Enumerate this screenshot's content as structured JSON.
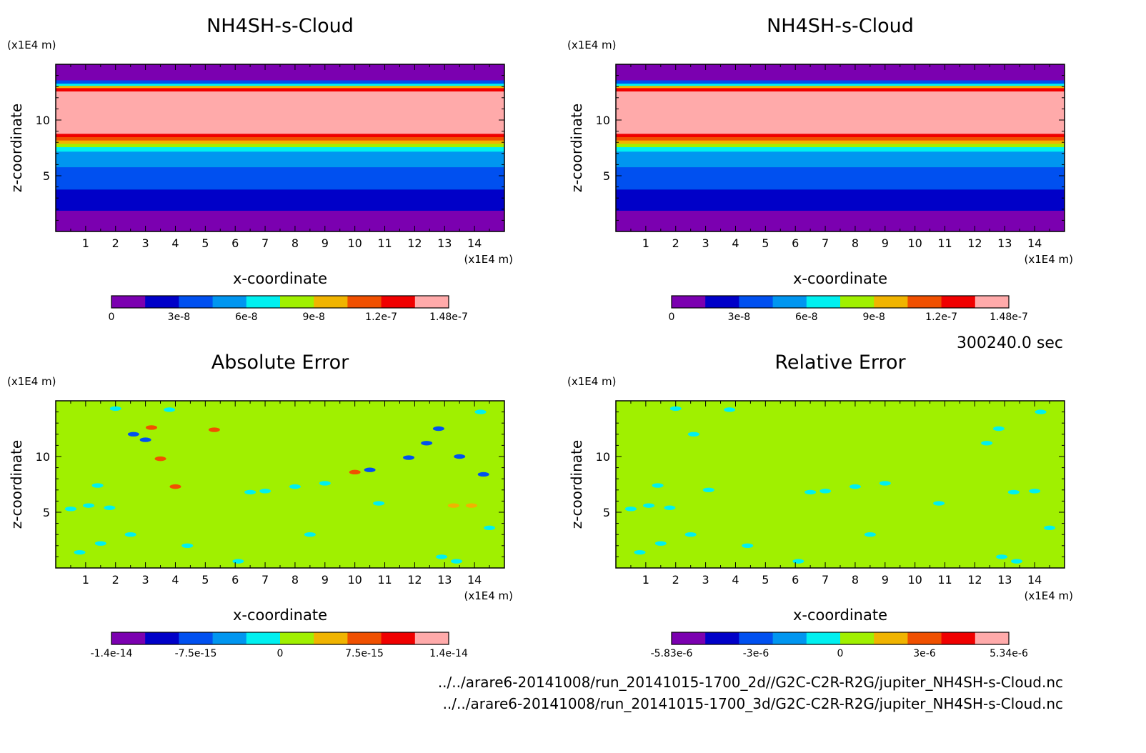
{
  "time_label": "300240.0 sec",
  "files": [
    "../../arare6-20141008/run_20141015-1700_2d//G2C-C2R-R2G/jupiter_NH4SH-s-Cloud.nc",
    "../../arare6-20141008/run_20141015-1700_3d/G2C-C2R-R2G/jupiter_NH4SH-s-Cloud.nc"
  ],
  "palette": [
    "#7b00b0",
    "#0000c8",
    "#0050f0",
    "#0096f0",
    "#00f0f0",
    "#a0f000",
    "#f0b400",
    "#f05000",
    "#f00000",
    "#ffaaaa"
  ],
  "chart_data": [
    {
      "type": "heatmap",
      "title": "NH4SH-s-Cloud",
      "xlabel": "x-coordinate",
      "ylabel": "z-coordinate",
      "x_unit": "(x1E4 m)",
      "y_unit": "(x1E4 m)",
      "xlim": [
        0,
        15
      ],
      "ylim": [
        0,
        15
      ],
      "x_ticks": [
        1,
        2,
        3,
        4,
        5,
        6,
        7,
        8,
        9,
        10,
        11,
        12,
        13,
        14
      ],
      "y_ticks": [
        5,
        10
      ],
      "colorbar_ticks": [
        "0",
        "3e-8",
        "6e-8",
        "9e-8",
        "1.2e-7",
        "1.48e-7"
      ],
      "layers": [
        {
          "level": 0,
          "z_from": 0,
          "z_to": 1.9
        },
        {
          "level": 1,
          "z_from": 1.9,
          "z_to": 3.8
        },
        {
          "level": 2,
          "z_from": 3.8,
          "z_to": 5.8
        },
        {
          "level": 3,
          "z_from": 5.8,
          "z_to": 7.2
        },
        {
          "level": 4,
          "z_from": 7.2,
          "z_to": 7.6
        },
        {
          "level": 5,
          "z_from": 7.6,
          "z_to": 7.9
        },
        {
          "level": 6,
          "z_from": 7.9,
          "z_to": 8.2
        },
        {
          "level": 7,
          "z_from": 8.2,
          "z_to": 8.5
        },
        {
          "level": 8,
          "z_from": 8.5,
          "z_to": 8.8
        },
        {
          "level": 9,
          "z_from": 8.8,
          "z_to": 12.6
        },
        {
          "level": 8,
          "z_from": 12.6,
          "z_to": 12.9
        },
        {
          "level": 6,
          "z_from": 12.9,
          "z_to": 13.1
        },
        {
          "level": 4,
          "z_from": 13.1,
          "z_to": 13.3
        },
        {
          "level": 2,
          "z_from": 13.3,
          "z_to": 13.6
        },
        {
          "level": 0,
          "z_from": 13.6,
          "z_to": 15
        }
      ]
    },
    {
      "type": "heatmap",
      "title": "NH4SH-s-Cloud",
      "xlabel": "x-coordinate",
      "ylabel": "z-coordinate",
      "x_unit": "(x1E4 m)",
      "y_unit": "(x1E4 m)",
      "xlim": [
        0,
        15
      ],
      "ylim": [
        0,
        15
      ],
      "x_ticks": [
        1,
        2,
        3,
        4,
        5,
        6,
        7,
        8,
        9,
        10,
        11,
        12,
        13,
        14
      ],
      "y_ticks": [
        5,
        10
      ],
      "colorbar_ticks": [
        "0",
        "3e-8",
        "6e-8",
        "9e-8",
        "1.2e-7",
        "1.48e-7"
      ],
      "layers": [
        {
          "level": 0,
          "z_from": 0,
          "z_to": 1.9
        },
        {
          "level": 1,
          "z_from": 1.9,
          "z_to": 3.8
        },
        {
          "level": 2,
          "z_from": 3.8,
          "z_to": 5.8
        },
        {
          "level": 3,
          "z_from": 5.8,
          "z_to": 7.2
        },
        {
          "level": 4,
          "z_from": 7.2,
          "z_to": 7.6
        },
        {
          "level": 5,
          "z_from": 7.6,
          "z_to": 7.9
        },
        {
          "level": 6,
          "z_from": 7.9,
          "z_to": 8.2
        },
        {
          "level": 7,
          "z_from": 8.2,
          "z_to": 8.5
        },
        {
          "level": 8,
          "z_from": 8.5,
          "z_to": 8.8
        },
        {
          "level": 9,
          "z_from": 8.8,
          "z_to": 12.6
        },
        {
          "level": 8,
          "z_from": 12.6,
          "z_to": 12.9
        },
        {
          "level": 6,
          "z_from": 12.9,
          "z_to": 13.1
        },
        {
          "level": 4,
          "z_from": 13.1,
          "z_to": 13.3
        },
        {
          "level": 2,
          "z_from": 13.3,
          "z_to": 13.6
        },
        {
          "level": 0,
          "z_from": 13.6,
          "z_to": 15
        }
      ]
    },
    {
      "type": "heatmap",
      "title": "Absolute Error",
      "xlabel": "x-coordinate",
      "ylabel": "z-coordinate",
      "x_unit": "(x1E4 m)",
      "y_unit": "(x1E4 m)",
      "xlim": [
        0,
        15
      ],
      "ylim": [
        0,
        15
      ],
      "x_ticks": [
        1,
        2,
        3,
        4,
        5,
        6,
        7,
        8,
        9,
        10,
        11,
        12,
        13,
        14
      ],
      "y_ticks": [
        5,
        10
      ],
      "colorbar_ticks": [
        "-1.4e-14",
        "-7.5e-15",
        "0",
        "7.5e-15",
        "1.4e-14"
      ],
      "background_level": 5,
      "patches": [
        {
          "x": 0.5,
          "z": 5.3,
          "level": 4
        },
        {
          "x": 1.1,
          "z": 5.6,
          "level": 4
        },
        {
          "x": 1.8,
          "z": 5.4,
          "level": 4
        },
        {
          "x": 1.4,
          "z": 7.4,
          "level": 4
        },
        {
          "x": 2.6,
          "z": 12.0,
          "level": 2
        },
        {
          "x": 3.0,
          "z": 11.5,
          "level": 2
        },
        {
          "x": 2.0,
          "z": 14.3,
          "level": 4
        },
        {
          "x": 3.8,
          "z": 14.2,
          "level": 4
        },
        {
          "x": 6.5,
          "z": 6.8,
          "level": 4
        },
        {
          "x": 7.0,
          "z": 6.9,
          "level": 4
        },
        {
          "x": 8.0,
          "z": 7.3,
          "level": 4
        },
        {
          "x": 10.5,
          "z": 8.8,
          "level": 2
        },
        {
          "x": 11.8,
          "z": 9.9,
          "level": 2
        },
        {
          "x": 12.4,
          "z": 11.2,
          "level": 2
        },
        {
          "x": 12.8,
          "z": 12.5,
          "level": 2
        },
        {
          "x": 13.5,
          "z": 10.0,
          "level": 2
        },
        {
          "x": 14.3,
          "z": 8.4,
          "level": 2
        },
        {
          "x": 14.2,
          "z": 14.0,
          "level": 4
        },
        {
          "x": 14.5,
          "z": 3.6,
          "level": 4
        },
        {
          "x": 12.9,
          "z": 1.0,
          "level": 4
        },
        {
          "x": 13.4,
          "z": 0.6,
          "level": 4
        },
        {
          "x": 0.8,
          "z": 1.4,
          "level": 4
        },
        {
          "x": 1.5,
          "z": 2.2,
          "level": 4
        },
        {
          "x": 4.4,
          "z": 2.0,
          "level": 4
        },
        {
          "x": 6.1,
          "z": 0.6,
          "level": 4
        },
        {
          "x": 9.0,
          "z": 7.6,
          "level": 4
        },
        {
          "x": 5.3,
          "z": 12.4,
          "level": 7
        },
        {
          "x": 3.2,
          "z": 12.6,
          "level": 7
        },
        {
          "x": 3.5,
          "z": 9.8,
          "level": 7
        },
        {
          "x": 10.0,
          "z": 8.6,
          "level": 7
        },
        {
          "x": 4.0,
          "z": 7.3,
          "level": 7
        },
        {
          "x": 13.3,
          "z": 5.6,
          "level": 6
        },
        {
          "x": 13.9,
          "z": 5.6,
          "level": 6
        },
        {
          "x": 10.8,
          "z": 5.8,
          "level": 4
        },
        {
          "x": 8.5,
          "z": 3.0,
          "level": 4
        },
        {
          "x": 2.5,
          "z": 3.0,
          "level": 4
        }
      ]
    },
    {
      "type": "heatmap",
      "title": "Relative Error",
      "xlabel": "x-coordinate",
      "ylabel": "z-coordinate",
      "x_unit": "(x1E4 m)",
      "y_unit": "(x1E4 m)",
      "xlim": [
        0,
        15
      ],
      "ylim": [
        0,
        15
      ],
      "x_ticks": [
        1,
        2,
        3,
        4,
        5,
        6,
        7,
        8,
        9,
        10,
        11,
        12,
        13,
        14
      ],
      "y_ticks": [
        5,
        10
      ],
      "colorbar_ticks": [
        "-5.83e-6",
        "-3e-6",
        "0",
        "3e-6",
        "5.34e-6"
      ],
      "background_level": 5,
      "patches": [
        {
          "x": 0.5,
          "z": 5.3,
          "level": 4
        },
        {
          "x": 1.1,
          "z": 5.6,
          "level": 4
        },
        {
          "x": 1.8,
          "z": 5.4,
          "level": 4
        },
        {
          "x": 1.4,
          "z": 7.4,
          "level": 4
        },
        {
          "x": 2.6,
          "z": 12.0,
          "level": 4
        },
        {
          "x": 2.0,
          "z": 14.3,
          "level": 4
        },
        {
          "x": 3.8,
          "z": 14.2,
          "level": 4
        },
        {
          "x": 6.5,
          "z": 6.8,
          "level": 4
        },
        {
          "x": 7.0,
          "z": 6.9,
          "level": 4
        },
        {
          "x": 8.0,
          "z": 7.3,
          "level": 4
        },
        {
          "x": 12.4,
          "z": 11.2,
          "level": 4
        },
        {
          "x": 12.8,
          "z": 12.5,
          "level": 4
        },
        {
          "x": 14.2,
          "z": 14.0,
          "level": 4
        },
        {
          "x": 14.5,
          "z": 3.6,
          "level": 4
        },
        {
          "x": 12.9,
          "z": 1.0,
          "level": 4
        },
        {
          "x": 13.4,
          "z": 0.6,
          "level": 4
        },
        {
          "x": 0.8,
          "z": 1.4,
          "level": 4
        },
        {
          "x": 1.5,
          "z": 2.2,
          "level": 4
        },
        {
          "x": 4.4,
          "z": 2.0,
          "level": 4
        },
        {
          "x": 6.1,
          "z": 0.6,
          "level": 4
        },
        {
          "x": 9.0,
          "z": 7.6,
          "level": 4
        },
        {
          "x": 13.3,
          "z": 6.8,
          "level": 4
        },
        {
          "x": 14.0,
          "z": 6.9,
          "level": 4
        },
        {
          "x": 10.8,
          "z": 5.8,
          "level": 4
        },
        {
          "x": 8.5,
          "z": 3.0,
          "level": 4
        },
        {
          "x": 2.5,
          "z": 3.0,
          "level": 4
        },
        {
          "x": 3.1,
          "z": 7.0,
          "level": 4
        }
      ]
    }
  ]
}
